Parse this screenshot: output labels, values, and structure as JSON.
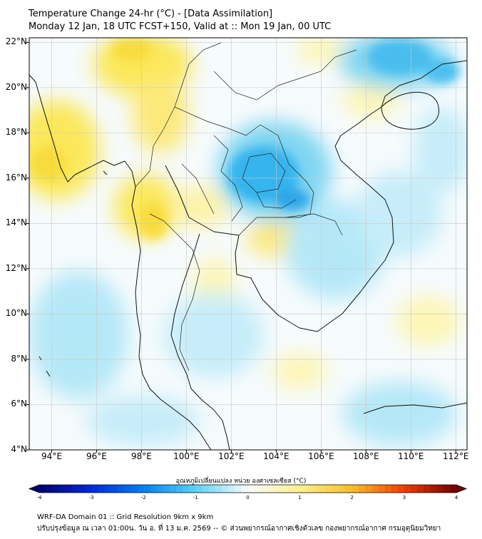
{
  "header": {
    "title_line1": "Temperature Change 24-hr (°C) - [Data Assimilation]",
    "title_line2": "Monday 12 Jan, 18 UTC FCST+150, Valid at :: Mon 19 Jan, 00 UTC"
  },
  "map": {
    "lat_labels": [
      "22°N",
      "20°N",
      "18°N",
      "16°N",
      "14°N",
      "12°N",
      "10°N",
      "8°N",
      "6°N",
      "4°N"
    ],
    "lon_labels": [
      "94°E",
      "96°E",
      "98°E",
      "100°E",
      "102°E",
      "104°E",
      "106°E",
      "108°E",
      "110°E",
      "112°E"
    ],
    "lat_range": [
      4,
      22.2
    ],
    "lon_range": [
      93,
      112.5
    ],
    "colors": {
      "neutral": "#f6fbfd",
      "light_blue": "#b5e8f7",
      "cyan": "#7fd6f2",
      "strong_blue": "#35b4ee",
      "light_yellow": "#fdf6b5",
      "yellow": "#fbe85a",
      "grid": "#c8c8c8",
      "boundary": "#111111"
    }
  },
  "colorbar": {
    "title": "อุณหภูมิเปลี่ยนแปลง หน่วย องศาเซลเซียส (°C)",
    "ticks": [
      "-4",
      "-3",
      "-2",
      "-1",
      "0",
      "1",
      "2",
      "3",
      "4"
    ],
    "range": [
      -4,
      4
    ]
  },
  "footer": {
    "line1": "WRF-DA Domain 01 :: Grid Resolution 9km x 9km",
    "line2": "ปรับปรุงข้อมูล ณ เวลา 01:00น. วัน อ. ที่ 13 ม.ค. 2569 -- © ส่วนพยากรณ์อากาศเชิงตัวเลข กองพยากรณ์อากาศ กรมอุตุนิยมวิทยา"
  }
}
